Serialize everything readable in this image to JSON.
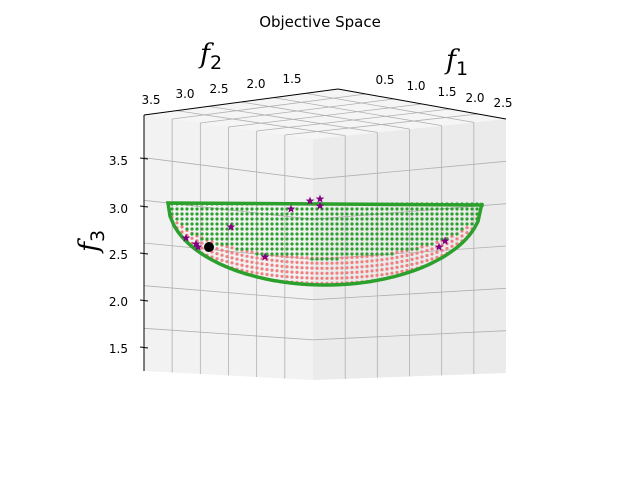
{
  "chart_data": {
    "type": "scatter",
    "projection": "3d",
    "title": "Objective Space",
    "axes": {
      "f1": {
        "label_main": "f",
        "label_sub": "1",
        "range": [
          0.0,
          2.5
        ],
        "ticks": [
          "0.5",
          "1.0",
          "1.5",
          "2.0",
          "2.5"
        ]
      },
      "f2": {
        "label_main": "f",
        "label_sub": "2",
        "range": [
          1.5,
          3.5
        ],
        "ticks": [
          "3.5",
          "3.0",
          "2.5",
          "2.0",
          "1.5"
        ]
      },
      "f3": {
        "label_main": "f",
        "label_sub": "3",
        "range": [
          1.5,
          3.5
        ],
        "ticks": [
          "3.5",
          "3.0",
          "2.5",
          "2.0",
          "1.5"
        ]
      }
    },
    "grid": true,
    "series": [
      {
        "marker": "dot",
        "color": "#f08080",
        "note_values": "front surface (lower / near side), approx. f3 2.2-2.6"
      },
      {
        "marker": "dot",
        "color": "#2ca02c",
        "note_values": "Pareto surface (upper / far side), approx. f3 2.3-3.0"
      },
      {
        "marker": "boundary-line",
        "color": "#2ca02c"
      },
      {
        "marker": "star",
        "color": "#800080",
        "points": [
          [
            1.4,
            2.7,
            3.02
          ],
          [
            1.3,
            2.6,
            3.04
          ],
          [
            1.2,
            2.5,
            3.05
          ],
          [
            1.9,
            2.3,
            2.93
          ],
          [
            2.4,
            1.8,
            2.6
          ],
          [
            2.6,
            1.7,
            2.54
          ],
          [
            0.6,
            3.1,
            2.73
          ],
          [
            1.0,
            2.9,
            2.42
          ],
          [
            0.3,
            3.3,
            2.61
          ],
          [
            0.2,
            3.4,
            2.57
          ],
          [
            0.25,
            3.35,
            2.55
          ]
        ]
      },
      {
        "marker": "circle",
        "color": "#000000",
        "points": [
          [
            0.1,
            3.2,
            2.55
          ]
        ]
      }
    ]
  }
}
